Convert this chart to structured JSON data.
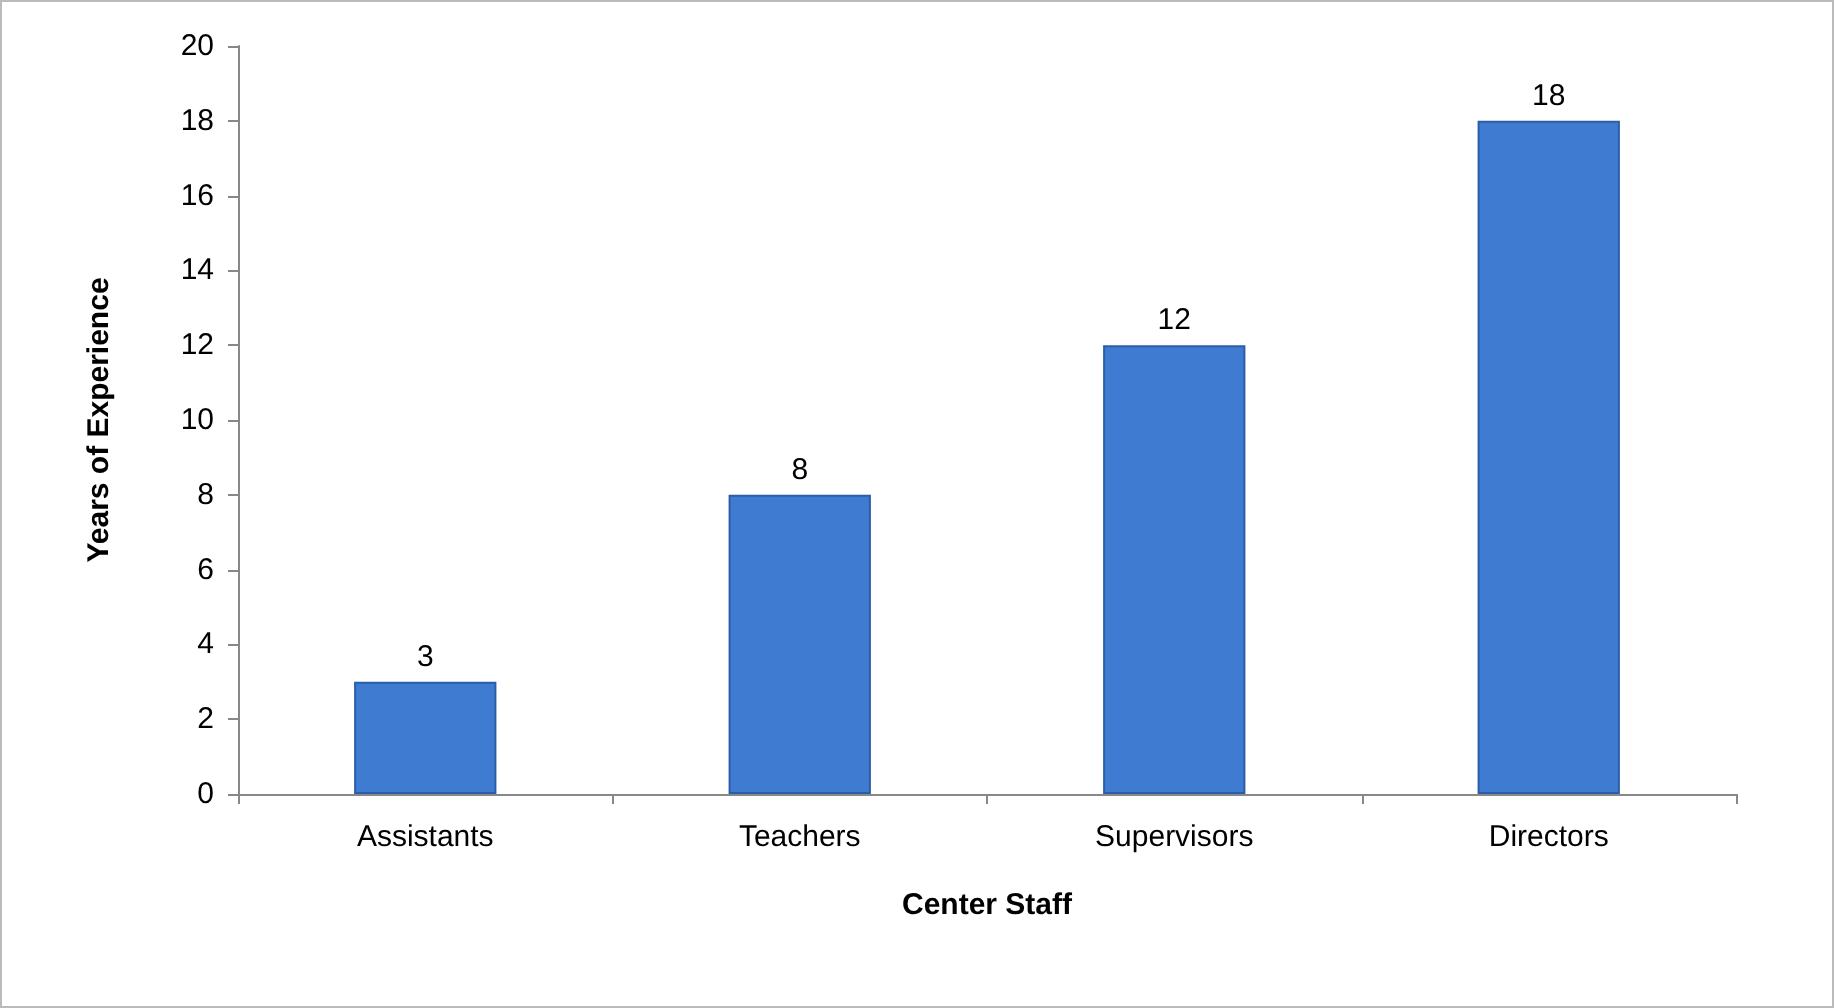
{
  "chart_data": {
    "type": "bar",
    "xlabel": "Center Staff",
    "ylabel": "Years of Experience",
    "categories": [
      "Assistants",
      "Teachers",
      "Supervisors",
      "Directors"
    ],
    "values": [
      3,
      8,
      12,
      18
    ],
    "color": "#3f7bd0",
    "ylim": [
      0,
      20
    ],
    "yticks": [
      0,
      2,
      4,
      6,
      8,
      10,
      12,
      14,
      16,
      18,
      20
    ],
    "grid": false,
    "data_labels": true
  }
}
